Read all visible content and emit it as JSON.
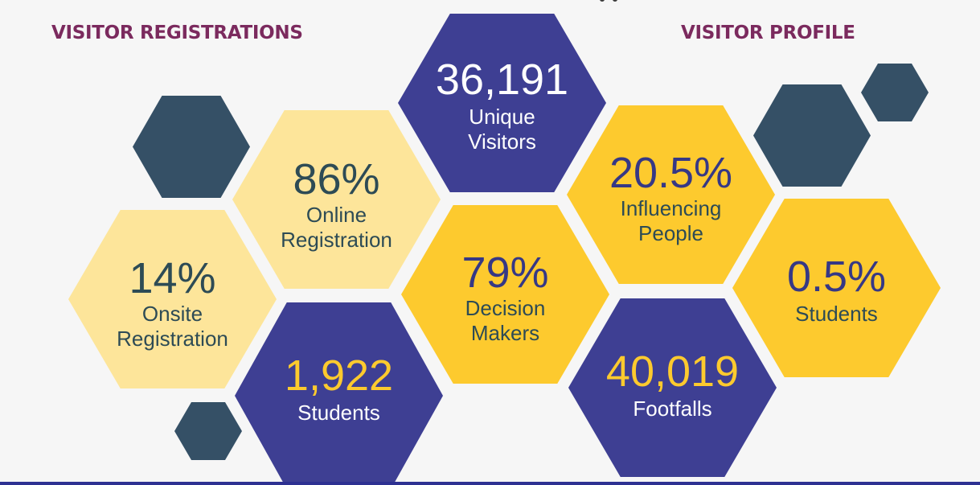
{
  "headings": {
    "left": "VISITOR REGISTRATIONS",
    "right": "VISITOR PROFILE"
  },
  "stats": {
    "unique_visitors": {
      "value": "36,191",
      "label_line1": "Unique",
      "label_line2": "Visitors"
    },
    "online_registration": {
      "value": "86%",
      "label_line1": "Online",
      "label_line2": "Registration"
    },
    "onsite_registration": {
      "value": "14%",
      "label_line1": "Onsite",
      "label_line2": "Registration"
    },
    "students_count": {
      "value": "1,922",
      "label_line1": "Students"
    },
    "decision_makers": {
      "value": "79%",
      "label_line1": "Decision",
      "label_line2": "Makers"
    },
    "influencing_people": {
      "value": "20.5%",
      "label_line1": "Influencing",
      "label_line2": "People"
    },
    "students_percent": {
      "value": "0.5%",
      "label_line1": "Students"
    },
    "footfalls": {
      "value": "40,019",
      "label_line1": "Footfalls"
    }
  },
  "colors": {
    "heading": "#7b2a5e",
    "pale_yellow": "#fde59a",
    "yellow": "#fdca2e",
    "purple": "#3e3f93",
    "slate": "#355066",
    "background": "#f6f6f6"
  }
}
